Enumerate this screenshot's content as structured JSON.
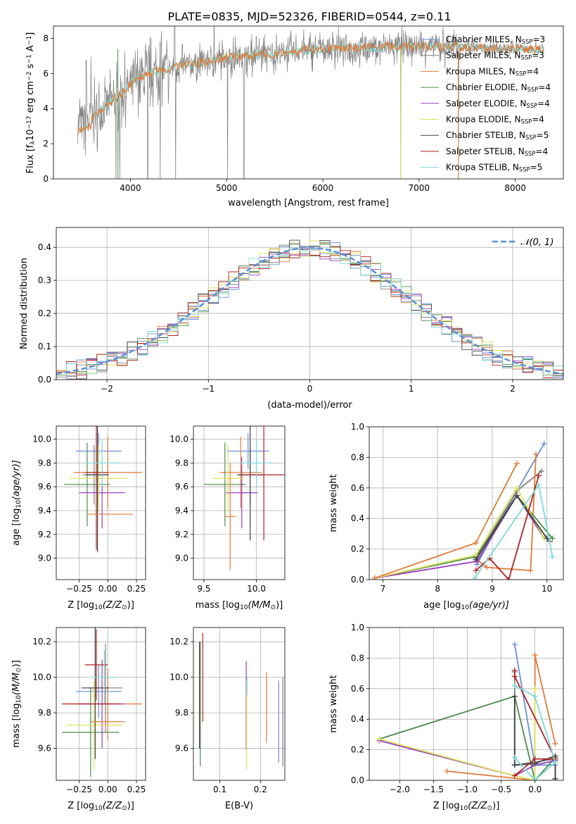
{
  "title": "PLATE=0835, MJD=52326, FIBERID=0544, z=0.11",
  "colors": {
    "Chabrier MILES": "#6a8fd6",
    "Salpeter MILES": "#808080",
    "Kroupa MILES": "#e07b39",
    "Chabrier ELODIE": "#4c8c4a",
    "Salpeter ELODIE": "#9b3fbf",
    "Kroupa ELODIE": "#dce35b",
    "Chabrier STELIB": "#404040",
    "Salpeter STELIB": "#b22222",
    "Kroupa STELIB": "#7fd9d9"
  },
  "chart_data": [
    {
      "id": "spectrum",
      "type": "line",
      "xlabel": "wavelength [Angstrom, rest frame]",
      "ylabel_main": "Flux [f",
      "ylabel_sub": "λ",
      "ylabel_tail": "10",
      "ylabel_exp1": "−17",
      "ylabel_tail2": " erg cm",
      "ylabel_exp2": "−2",
      "ylabel_tail3": " s",
      "ylabel_exp3": "−1",
      "ylabel_tail4": " A",
      "ylabel_exp4": "−1",
      "ylabel_end": "]",
      "xlim": [
        3200,
        8500
      ],
      "ylim": [
        0,
        8.7
      ],
      "xticks": [
        "4000",
        "5000",
        "6000",
        "7000",
        "8000"
      ],
      "yticks": [
        "0",
        "2",
        "4",
        "6",
        "8"
      ],
      "legend_position": "right",
      "legend": [
        {
          "name": "Chabrier MILES",
          "nssp": "3"
        },
        {
          "name": "Salpeter MILES",
          "nssp": "3"
        },
        {
          "name": "Kroupa MILES",
          "nssp": "4"
        },
        {
          "name": "Chabrier ELODIE",
          "nssp": "4"
        },
        {
          "name": "Salpeter ELODIE",
          "nssp": "4"
        },
        {
          "name": "Kroupa ELODIE",
          "nssp": "4"
        },
        {
          "name": "Chabrier STELIB",
          "nssp": "5"
        },
        {
          "name": "Salpeter STELIB",
          "nssp": "4"
        },
        {
          "name": "Kroupa STELIB",
          "nssp": "5"
        }
      ],
      "legend_prefix": ", N",
      "legend_sub": "SSP",
      "data_series": "Salpeter MILES",
      "model_series": [
        "Kroupa STELIB",
        "Kroupa MILES"
      ],
      "continuum": {
        "x": [
          3450,
          3550,
          3700,
          3800,
          3900,
          4000,
          4100,
          4250,
          4400,
          4600,
          4800,
          5000,
          5200,
          5400,
          5600,
          5800,
          6000,
          6200,
          6400,
          6600,
          6800,
          7000,
          7200,
          7400,
          7700,
          8000,
          8300
        ],
        "y": [
          3.1,
          3.3,
          3.9,
          4.4,
          4.8,
          5.4,
          5.8,
          6.1,
          6.3,
          6.5,
          6.7,
          6.9,
          7.0,
          7.1,
          7.2,
          7.3,
          7.4,
          7.45,
          7.5,
          7.5,
          7.55,
          7.55,
          7.55,
          7.5,
          7.45,
          7.4,
          7.35
        ]
      },
      "spikes_down": [
        3850,
        3890,
        4180,
        4310,
        4470,
        5010,
        5180,
        6810,
        7410
      ],
      "spikes_up": [
        3540,
        3590,
        4460,
        4870
      ]
    },
    {
      "id": "residuals",
      "type": "histogram",
      "xlabel": "(data-model)/error",
      "ylabel": "Normed distribution",
      "xlim": [
        -2.5,
        2.5
      ],
      "ylim": [
        0,
        0.46
      ],
      "xticks": [
        "−2",
        "−1",
        "0",
        "1",
        "2"
      ],
      "yticks": [
        "0.0",
        "0.1",
        "0.2",
        "0.3",
        "0.4"
      ],
      "bin_edges_start": -2.5,
      "bin_width": 0.1,
      "grid": true,
      "legend_position": "top-right",
      "legend": "𝒩(0, 1)",
      "reference_curve": "gaussian mean 0 sigma 1"
    },
    {
      "id": "age-z",
      "type": "errorbar",
      "xlabel_pre": "Z [log",
      "xlabel_sub": "10",
      "xlabel_post": "(Z/Z",
      "xlabel_sub2": "⊙",
      "xlabel_end": ")]",
      "ylabel_pre": "age  [log",
      "ylabel_sub": "10",
      "ylabel_post": "(age/yr)]",
      "xlim": [
        -0.45,
        0.33
      ],
      "ylim": [
        8.82,
        10.11
      ],
      "xticks": [
        "−0.25",
        "0.00",
        "0.25"
      ],
      "yticks": [
        "9.0",
        "9.2",
        "9.4",
        "9.6",
        "9.8",
        "10.0"
      ],
      "grid": true,
      "points": [
        {
          "model": "Chabrier MILES",
          "x": -0.08,
          "y": 9.9,
          "xerr": 0.2,
          "yerr": 0.15
        },
        {
          "model": "Salpeter MILES",
          "x": -0.12,
          "y": 9.7,
          "xerr": 0.1,
          "yerr": 0.25
        },
        {
          "model": "Kroupa MILES",
          "x": 0.0,
          "y": 9.72,
          "xerr": 0.3,
          "yerr": 0.3
        },
        {
          "model": "Chabrier ELODIE",
          "x": -0.18,
          "y": 9.62,
          "xerr": 0.2,
          "yerr": 0.35
        },
        {
          "model": "Salpeter ELODIE",
          "x": -0.05,
          "y": 9.55,
          "xerr": 0.2,
          "yerr": 0.3
        },
        {
          "model": "Kroupa ELODIE",
          "x": -0.08,
          "y": 9.67,
          "xerr": 0.25,
          "yerr": 0.28
        },
        {
          "model": "Chabrier STELIB",
          "x": -0.09,
          "y": 9.7,
          "xerr": 0.1,
          "yerr": 0.65
        },
        {
          "model": "Salpeter STELIB",
          "x": -0.1,
          "y": 9.72,
          "xerr": 0.1,
          "yerr": 0.65
        },
        {
          "model": "Kroupa STELIB",
          "x": -0.05,
          "y": 9.8,
          "xerr": 0.15,
          "yerr": 0.2
        },
        {
          "model": "Kroupa MILES",
          "x": 0.02,
          "y": 9.37,
          "xerr": 0.2,
          "yerr": 0.0
        }
      ]
    },
    {
      "id": "age-mass",
      "type": "errorbar",
      "xlabel_pre": "mass [log",
      "xlabel_sub": "10",
      "xlabel_post": "(M/M",
      "xlabel_sub2": "⊙",
      "xlabel_end": ")]",
      "xlim": [
        9.4,
        10.27
      ],
      "ylim": [
        8.82,
        10.11
      ],
      "xticks": [
        "9.5",
        "10.0"
      ],
      "yticks": [
        "9.0",
        "9.2",
        "9.4",
        "9.6",
        "9.8",
        "10.0"
      ],
      "grid": true,
      "points": [
        {
          "model": "Chabrier MILES",
          "x": 9.92,
          "y": 9.9,
          "xerr": 0.2,
          "yerr": 0.15
        },
        {
          "model": "Salpeter MILES",
          "x": 9.94,
          "y": 9.7,
          "xerr": 0.12,
          "yerr": 0.25
        },
        {
          "model": "Kroupa MILES",
          "x": 9.85,
          "y": 9.72,
          "xerr": 0.2,
          "yerr": 0.3
        },
        {
          "model": "Chabrier ELODIE",
          "x": 9.7,
          "y": 9.62,
          "xerr": 0.2,
          "yerr": 0.35
        },
        {
          "model": "Salpeter ELODIE",
          "x": 9.86,
          "y": 9.55,
          "xerr": 0.15,
          "yerr": 0.3
        },
        {
          "model": "Kroupa ELODIE",
          "x": 9.73,
          "y": 9.67,
          "xerr": 0.15,
          "yerr": 0.28
        },
        {
          "model": "Chabrier STELIB",
          "x": 9.94,
          "y": 9.7,
          "xerr": 0.12,
          "yerr": 0.55
        },
        {
          "model": "Salpeter STELIB",
          "x": 10.07,
          "y": 9.7,
          "xerr": 0.2,
          "yerr": 0.55
        },
        {
          "model": "Kroupa STELIB",
          "x": 10.0,
          "y": 9.8,
          "xerr": 0.15,
          "yerr": 0.2
        },
        {
          "model": "Kroupa MILES",
          "x": 9.75,
          "y": 9.35,
          "xerr": 0.05,
          "yerr": 0.45
        }
      ]
    },
    {
      "id": "weight-age",
      "type": "line",
      "xlabel_pre": "age  [log",
      "xlabel_sub": "10",
      "xlabel_post": "(age/yr)]",
      "ylabel": "mass weight",
      "xlim": [
        6.75,
        10.3
      ],
      "ylim": [
        0,
        1.0
      ],
      "xticks": [
        "7",
        "8",
        "9",
        "10"
      ],
      "yticks": [
        "0.0",
        "0.2",
        "0.4",
        "0.6",
        "0.8",
        "1.0"
      ],
      "grid": true,
      "series": [
        {
          "model": "Chabrier MILES",
          "x": [
            8.72,
            9.45,
            9.95
          ],
          "y": [
            0.1,
            0.58,
            0.89
          ]
        },
        {
          "model": "Salpeter MILES",
          "x": [
            8.7,
            9.45,
            9.9
          ],
          "y": [
            0.14,
            0.58,
            0.71
          ]
        },
        {
          "model": "Kroupa MILES",
          "x": [
            8.72,
            8.9,
            9.7,
            9.8
          ],
          "y": [
            0.13,
            0.08,
            0.06,
            0.82
          ]
        },
        {
          "model": "Chabrier ELODIE",
          "x": [
            6.85,
            8.7,
            9.45,
            10.1
          ],
          "y": [
            0.01,
            0.15,
            0.55,
            0.27
          ]
        },
        {
          "model": "Salpeter ELODIE",
          "x": [
            6.85,
            8.72,
            9.45,
            9.95
          ],
          "y": [
            0.01,
            0.12,
            0.55,
            0.27
          ]
        },
        {
          "model": "Kroupa ELODIE",
          "x": [
            6.85,
            8.7,
            9.45,
            9.95
          ],
          "y": [
            0.01,
            0.16,
            0.6,
            0.27
          ]
        },
        {
          "model": "Chabrier STELIB",
          "x": [
            8.7,
            9.45,
            10.0,
            10.05
          ],
          "y": [
            0.13,
            0.55,
            0.27,
            0.25
          ]
        },
        {
          "model": "Salpeter STELIB",
          "x": [
            8.7,
            8.95,
            9.3,
            9.85
          ],
          "y": [
            0.06,
            0.14,
            0.0,
            0.68
          ]
        },
        {
          "model": "Kroupa STELIB",
          "x": [
            8.68,
            9.85,
            10.1
          ],
          "y": [
            0.01,
            0.62,
            0.15
          ]
        },
        {
          "model": "Kroupa MILES",
          "x": [
            6.85,
            8.7,
            9.45
          ],
          "y": [
            0.01,
            0.24,
            0.76
          ]
        }
      ]
    },
    {
      "id": "mass-z",
      "type": "errorbar",
      "xlabel_pre": "Z [log",
      "xlabel_sub": "10",
      "xlabel_post": "(Z/Z",
      "xlabel_sub2": "⊙",
      "xlabel_end": ")]",
      "ylabel_pre": "mass [log",
      "ylabel_sub": "10",
      "ylabel_post": "(M/M",
      "ylabel_sub2": "⊙",
      "ylabel_end": ")]",
      "xlim": [
        -0.45,
        0.33
      ],
      "ylim": [
        9.42,
        10.28
      ],
      "xticks": [
        "−0.25",
        "0.00",
        "0.25"
      ],
      "yticks": [
        "9.6",
        "9.8",
        "10.0",
        "10.2"
      ],
      "grid": true,
      "points": [
        {
          "model": "Chabrier MILES",
          "x": -0.08,
          "y": 9.92,
          "xerr": 0.2,
          "yerr": 0.15
        },
        {
          "model": "Salpeter MILES",
          "x": -0.02,
          "y": 9.94,
          "xerr": 0.15,
          "yerr": 0.25
        },
        {
          "model": "Kroupa MILES",
          "x": 0.0,
          "y": 9.85,
          "xerr": 0.3,
          "yerr": 0.2
        },
        {
          "model": "Chabrier ELODIE",
          "x": -0.15,
          "y": 9.69,
          "xerr": 0.25,
          "yerr": 0.25
        },
        {
          "model": "Salpeter ELODIE",
          "x": -0.05,
          "y": 9.85,
          "xerr": 0.2,
          "yerr": 0.25
        },
        {
          "model": "Kroupa ELODIE",
          "x": -0.12,
          "y": 9.73,
          "xerr": 0.25,
          "yerr": 0.25
        },
        {
          "model": "Chabrier STELIB",
          "x": -0.11,
          "y": 9.94,
          "xerr": 0.12,
          "yerr": 0.4
        },
        {
          "model": "Salpeter STELIB",
          "x": -0.1,
          "y": 10.07,
          "xerr": 0.1,
          "yerr": 0.2
        },
        {
          "model": "Kroupa STELIB",
          "x": -0.03,
          "y": 10.0,
          "xerr": 0.1,
          "yerr": 0.15
        },
        {
          "model": "Kroupa MILES",
          "x": 0.0,
          "y": 9.75,
          "xerr": 0.15,
          "yerr": 0.0
        },
        {
          "model": "Salpeter STELIB",
          "x": -0.15,
          "y": 9.85,
          "xerr": 0.25,
          "yerr": 0.0
        }
      ]
    },
    {
      "id": "mass-ebv",
      "type": "errorbar",
      "xlabel": "E(B-V)",
      "xlim": [
        0.035,
        0.26
      ],
      "ylim": [
        9.42,
        10.28
      ],
      "xticks": [
        "0.1",
        "0.2"
      ],
      "yticks": [
        "9.6",
        "9.8",
        "10.0",
        "10.2"
      ],
      "grid": true,
      "points": [
        {
          "model": "Chabrier MILES",
          "x": 0.245,
          "y": 9.75,
          "yerr": 0.23
        },
        {
          "model": "Salpeter MILES",
          "x": 0.255,
          "y": 9.75,
          "yerr": 0.25
        },
        {
          "model": "Kroupa MILES",
          "x": 0.215,
          "y": 9.83,
          "yerr": 0.2
        },
        {
          "model": "Chabrier ELODIE",
          "x": 0.052,
          "y": 9.85,
          "yerr": 0.35
        },
        {
          "model": "Salpeter ELODIE",
          "x": 0.165,
          "y": 9.84,
          "yerr": 0.25
        },
        {
          "model": "Kroupa ELODIE",
          "x": 0.166,
          "y": 9.73,
          "yerr": 0.25
        },
        {
          "model": "Chabrier STELIB",
          "x": 0.05,
          "y": 9.9,
          "yerr": 0.3
        },
        {
          "model": "Salpeter STELIB",
          "x": 0.058,
          "y": 10.0,
          "yerr": 0.25
        },
        {
          "model": "Kroupa STELIB",
          "x": 0.167,
          "y": 9.95,
          "yerr": 0.05
        }
      ]
    },
    {
      "id": "weight-z",
      "type": "line",
      "xlabel_pre": "Z [log",
      "xlabel_sub": "10",
      "xlabel_post": "(Z/Z",
      "xlabel_sub2": "⊙",
      "xlabel_end": ")]",
      "ylabel": "mass weight",
      "xlim": [
        -2.45,
        0.42
      ],
      "ylim": [
        0,
        1.0
      ],
      "xticks": [
        "−2.0",
        "−1.5",
        "−1.0",
        "−0.5",
        "0.0"
      ],
      "yticks": [
        "0.0",
        "0.2",
        "0.4",
        "0.6",
        "0.8",
        "1.0"
      ],
      "grid": true,
      "series": [
        {
          "model": "Chabrier MILES",
          "x": [
            -0.3,
            0.0,
            0.3
          ],
          "y": [
            0.89,
            0.1,
            0.1
          ]
        },
        {
          "model": "Salpeter MILES",
          "x": [
            -0.3,
            -0.3,
            0.3,
            0.3
          ],
          "y": [
            0.71,
            0.1,
            0.14,
            0.01
          ]
        },
        {
          "model": "Kroupa MILES",
          "x": [
            -1.3,
            0.0,
            0.0,
            0.3
          ],
          "y": [
            0.06,
            0.0,
            0.82,
            0.24
          ]
        },
        {
          "model": "Chabrier ELODIE",
          "x": [
            -2.3,
            -0.3,
            0.0,
            0.3
          ],
          "y": [
            0.27,
            0.55,
            0.0,
            0.15
          ]
        },
        {
          "model": "Salpeter ELODIE",
          "x": [
            -2.3,
            -0.3,
            0.0,
            0.3
          ],
          "y": [
            0.26,
            0.03,
            0.1,
            0.13
          ]
        },
        {
          "model": "Kroupa ELODIE",
          "x": [
            -2.3,
            -0.3,
            0.0,
            0.0
          ],
          "y": [
            0.27,
            0.03,
            0.0,
            0.6
          ]
        },
        {
          "model": "Chabrier STELIB",
          "x": [
            -0.3,
            -0.3,
            0.0,
            0.3,
            0.3
          ],
          "y": [
            0.55,
            0.1,
            0.11,
            0.16,
            0.01
          ]
        },
        {
          "model": "Salpeter STELIB",
          "x": [
            -0.3,
            0.0,
            0.3,
            -0.3,
            -0.3
          ],
          "y": [
            0.03,
            0.14,
            0.14,
            0.68,
            0.72
          ]
        },
        {
          "model": "Kroupa STELIB",
          "x": [
            -0.3,
            0.0,
            0.3,
            0.0,
            -0.3
          ],
          "y": [
            0.15,
            0.0,
            0.12,
            0.55,
            0.62
          ]
        }
      ]
    }
  ]
}
